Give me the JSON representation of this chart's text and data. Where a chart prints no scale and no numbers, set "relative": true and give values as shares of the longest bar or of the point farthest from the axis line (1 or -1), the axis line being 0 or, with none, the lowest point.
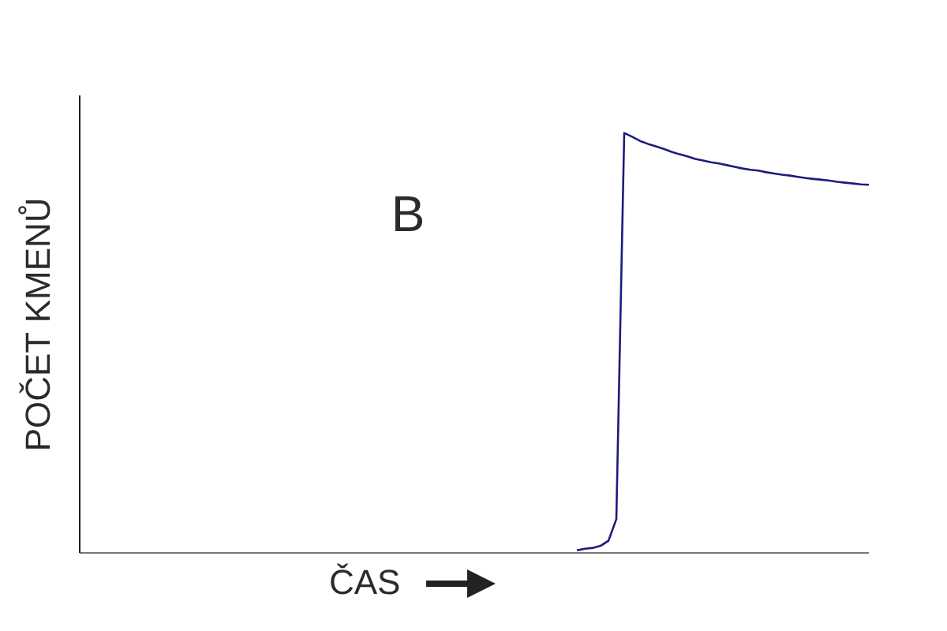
{
  "chart_data": {
    "type": "line",
    "relative": true,
    "xlabel": "ČAS",
    "ylabel": "POČET KMENŮ",
    "annotations": [
      "B"
    ],
    "categories": [
      null,
      null,
      null,
      null,
      null,
      null,
      null,
      null,
      null,
      null,
      null,
      null,
      null,
      null,
      null,
      null,
      null,
      null,
      null,
      null,
      null,
      null,
      null,
      null,
      null,
      null,
      null,
      null,
      null,
      null,
      null,
      null,
      null,
      null,
      null,
      null,
      null,
      null,
      null,
      null,
      null,
      null,
      null,
      null,
      null,
      null,
      null,
      null,
      null,
      null,
      null,
      null,
      null,
      null,
      null,
      null,
      null,
      null,
      null,
      null,
      null,
      null,
      null,
      null,
      null,
      null,
      null,
      null,
      null,
      null,
      null,
      null,
      null,
      null,
      null,
      null,
      null,
      null,
      null,
      null,
      null,
      null,
      null,
      null,
      null,
      null,
      null,
      null,
      null,
      null,
      null,
      null,
      null,
      null,
      null,
      null,
      null,
      null,
      null,
      null,
      null
    ],
    "series": [
      {
        "color": "#1c1c7c",
        "values": [
          null,
          null,
          null,
          null,
          null,
          null,
          null,
          null,
          null,
          null,
          null,
          null,
          null,
          null,
          null,
          null,
          null,
          null,
          null,
          null,
          null,
          null,
          null,
          null,
          null,
          null,
          null,
          null,
          null,
          null,
          null,
          null,
          null,
          null,
          null,
          null,
          null,
          null,
          null,
          null,
          null,
          null,
          null,
          null,
          null,
          null,
          null,
          null,
          null,
          null,
          null,
          null,
          null,
          null,
          null,
          null,
          null,
          null,
          null,
          null,
          null,
          null,
          null,
          0,
          0.004,
          0.006,
          0.011,
          0.023,
          0.075,
          1.0,
          0.991,
          0.981,
          0.974,
          0.968,
          0.962,
          0.955,
          0.949,
          0.944,
          0.938,
          0.934,
          0.93,
          0.927,
          0.923,
          0.919,
          0.915,
          0.912,
          0.91,
          0.906,
          0.903,
          0.9,
          0.898,
          0.895,
          0.892,
          0.89,
          0.888,
          0.886,
          0.883,
          0.881,
          0.879,
          0.877,
          0.876
        ]
      }
    ]
  }
}
